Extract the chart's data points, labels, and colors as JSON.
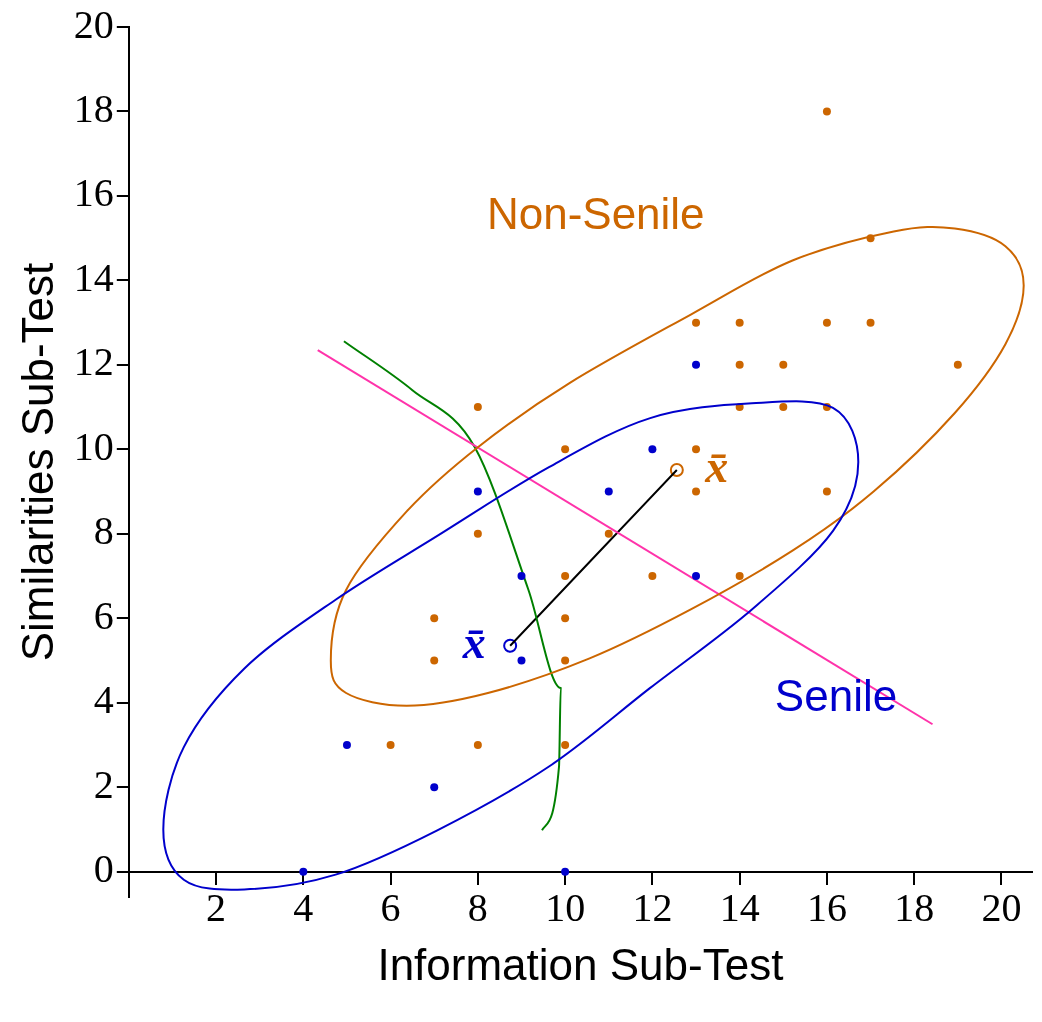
{
  "chart_data": {
    "type": "scatter",
    "xlabel": "Information Sub-Test",
    "ylabel": "Similarities Sub-Test",
    "xlim": [
      0,
      20.7
    ],
    "ylim": [
      -0.6,
      20
    ],
    "xticks": [
      2,
      4,
      6,
      8,
      10,
      12,
      14,
      16,
      18,
      20
    ],
    "yticks": [
      0,
      2,
      4,
      6,
      8,
      10,
      12,
      14,
      16,
      18,
      20
    ],
    "annotations": [
      "Non-Senile",
      "Senile",
      "x̄",
      "x̄"
    ],
    "series": [
      {
        "marker": "circle",
        "color": "#0000cc",
        "x": [
          13,
          12,
          8,
          11,
          9,
          13,
          9,
          5,
          7,
          4,
          10
        ],
        "values": [
          12,
          10,
          9,
          9,
          7,
          7,
          5,
          3,
          2,
          0,
          0
        ]
      },
      {
        "marker": "circle",
        "color": "#cc6600",
        "x": [
          8,
          13,
          14,
          16,
          17,
          16,
          17,
          14,
          15,
          19,
          14,
          15,
          16,
          10,
          13,
          13,
          16,
          8,
          11,
          10,
          12,
          14,
          7,
          10,
          7,
          10,
          6,
          8,
          10
        ],
        "values": [
          11,
          13,
          13,
          13,
          13,
          18,
          15,
          12,
          12,
          12,
          11,
          11,
          11,
          10,
          10,
          9,
          9,
          8,
          8,
          7,
          7,
          7,
          6,
          6,
          5,
          5,
          3,
          3,
          3
        ]
      },
      {
        "type": "line",
        "color": "#ff33aa",
        "x": [
          4.33,
          18.42
        ],
        "values": [
          12.35,
          3.49
        ]
      },
      {
        "type": "line",
        "color": "#008000",
        "x": [
          4.93,
          6.5,
          7.93,
          9.16,
          9.9,
          9.86,
          9.47
        ],
        "values": [
          12.56,
          11.4,
          10.05,
          6.67,
          4.35,
          2.49,
          0.98
        ]
      },
      {
        "type": "line",
        "color": "#000000",
        "x": [
          8.74,
          12.56
        ],
        "values": [
          5.35,
          9.51
        ]
      },
      {
        "marker": "circle",
        "color": "#0000cc",
        "x": [
          8.74
        ],
        "values": [
          5.35
        ]
      },
      {
        "marker": "circle",
        "color": "#cc6600",
        "x": [
          12.56
        ],
        "values": [
          9.51
        ]
      }
    ]
  }
}
